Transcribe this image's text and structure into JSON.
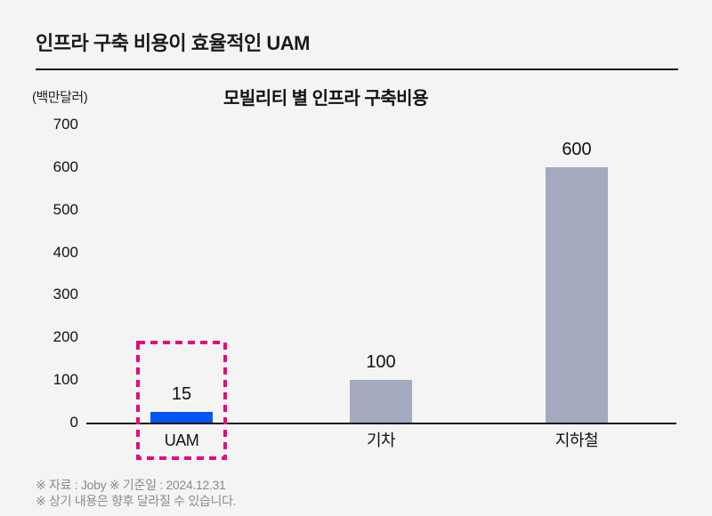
{
  "page": {
    "background": "#f4f4f4",
    "header": {
      "title": "인프라 구축 비용이 효율적인 UAM"
    },
    "footer": {
      "line1": "※ 자료 : Joby ※ 기준일 : 2024.12.31",
      "line2": "※ 상기 내용은 향후 달라질 수 있습니다."
    }
  },
  "chart_data": {
    "type": "bar",
    "title": "모빌리티 별 인프라 구축비용",
    "unit_label": "(백만달러)",
    "categories": [
      "UAM",
      "기차",
      "지하철"
    ],
    "values": [
      15,
      100,
      600
    ],
    "ylim": [
      0,
      700
    ],
    "yticks": [
      700,
      600,
      500,
      400,
      300,
      200,
      100,
      0
    ],
    "grid": false,
    "legend": "none",
    "bar_colors": [
      "#0356f2",
      "#a3a9be",
      "#a3a9be"
    ],
    "axis_color": "#111111",
    "highlight": {
      "category": "UAM",
      "style": "dashed-box",
      "color": "#e5097f"
    }
  }
}
